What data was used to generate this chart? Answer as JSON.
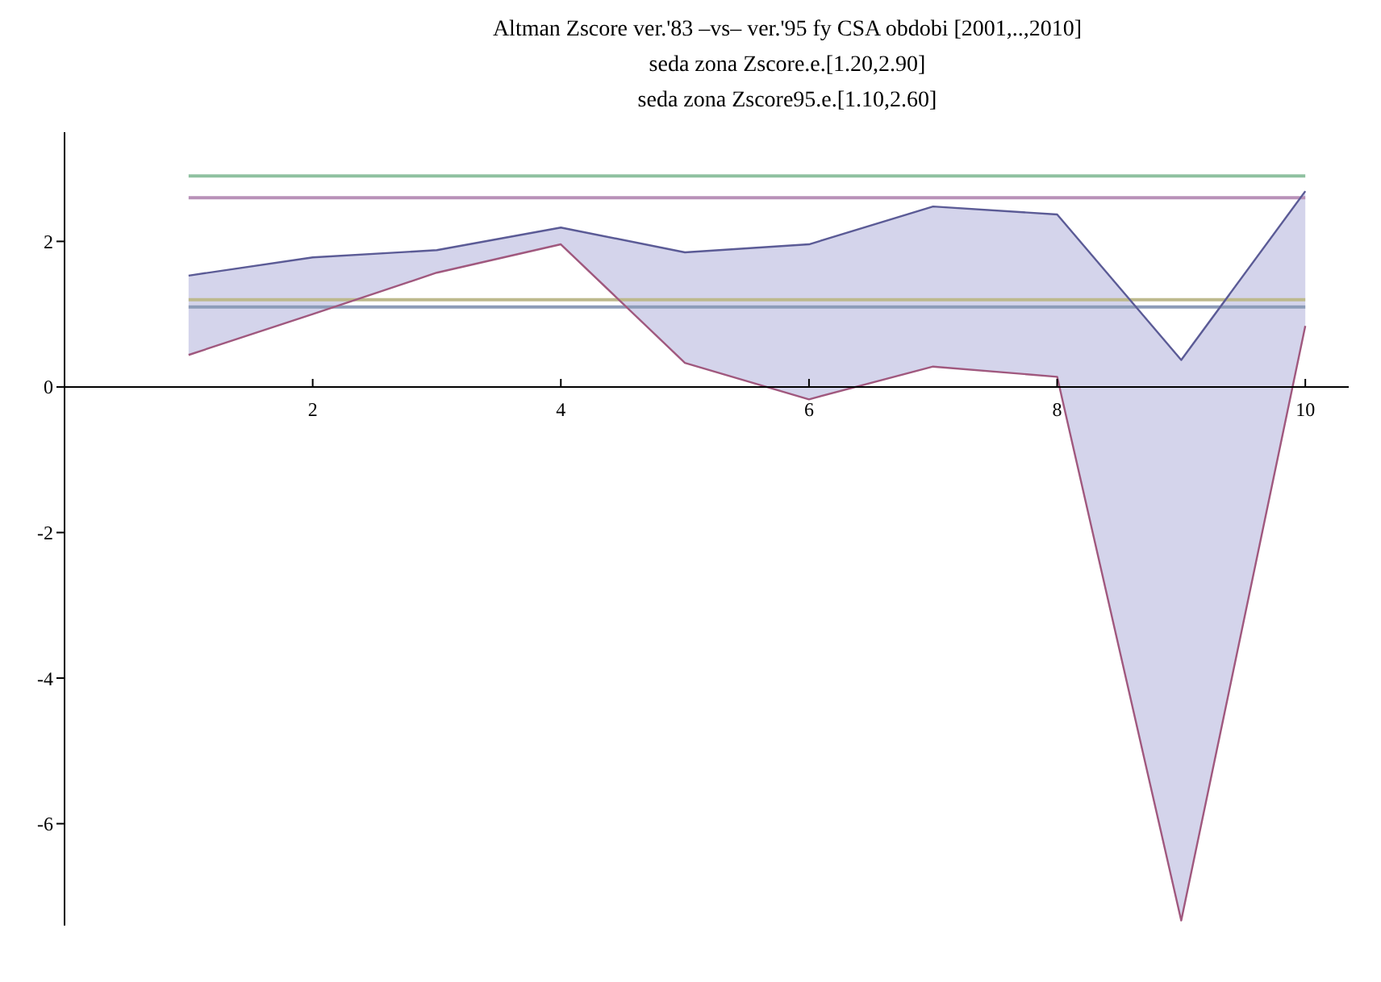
{
  "chart_data": {
    "type": "line",
    "title": "Altman Zscore ver.'83 –vs– ver.'95 fy CSA obdobi [2001,..,2010]",
    "subtitle": "seda zona Zscore.e.[1.20,2.90]\nseda zona Zscore95.e.[1.10,2.60]",
    "x": [
      1,
      2,
      3,
      4,
      5,
      6,
      7,
      8,
      9,
      10
    ],
    "series": [
      {
        "color": "#5b5b96",
        "values": [
          1.53,
          1.78,
          1.88,
          2.19,
          1.85,
          1.96,
          2.48,
          2.37,
          0.37,
          2.69
        ],
        "lower": [
          0.44,
          1.0,
          1.57,
          1.96,
          0.33,
          -0.17,
          0.28,
          0.14,
          -7.33,
          0.84
        ],
        "upper": [
          1.53,
          1.78,
          1.88,
          2.19,
          1.85,
          1.96,
          2.48,
          2.37,
          0.37,
          2.69
        ]
      },
      {
        "color": "#a0587e",
        "values": [
          0.44,
          1.0,
          1.57,
          1.96,
          0.33,
          -0.17,
          0.28,
          0.14,
          -7.33,
          0.84
        ]
      }
    ],
    "ref_lines": [
      {
        "axis": "y",
        "value": 2.9,
        "color": "#8fc1a0"
      },
      {
        "axis": "y",
        "value": 2.6,
        "color": "#b891b8"
      },
      {
        "axis": "y",
        "value": 1.2,
        "color": "#bdb98c"
      },
      {
        "axis": "y",
        "value": 1.1,
        "color": "#8d9cb8"
      }
    ],
    "xlim": [
      0,
      10.35
    ],
    "xticks": [
      2,
      4,
      6,
      8,
      10
    ],
    "ylim": [
      -7.4,
      3.5
    ],
    "yticks": [
      -6,
      -4,
      -2,
      0,
      2
    ],
    "grid": false,
    "legend": false,
    "marker": "none",
    "line_style": "solid"
  }
}
